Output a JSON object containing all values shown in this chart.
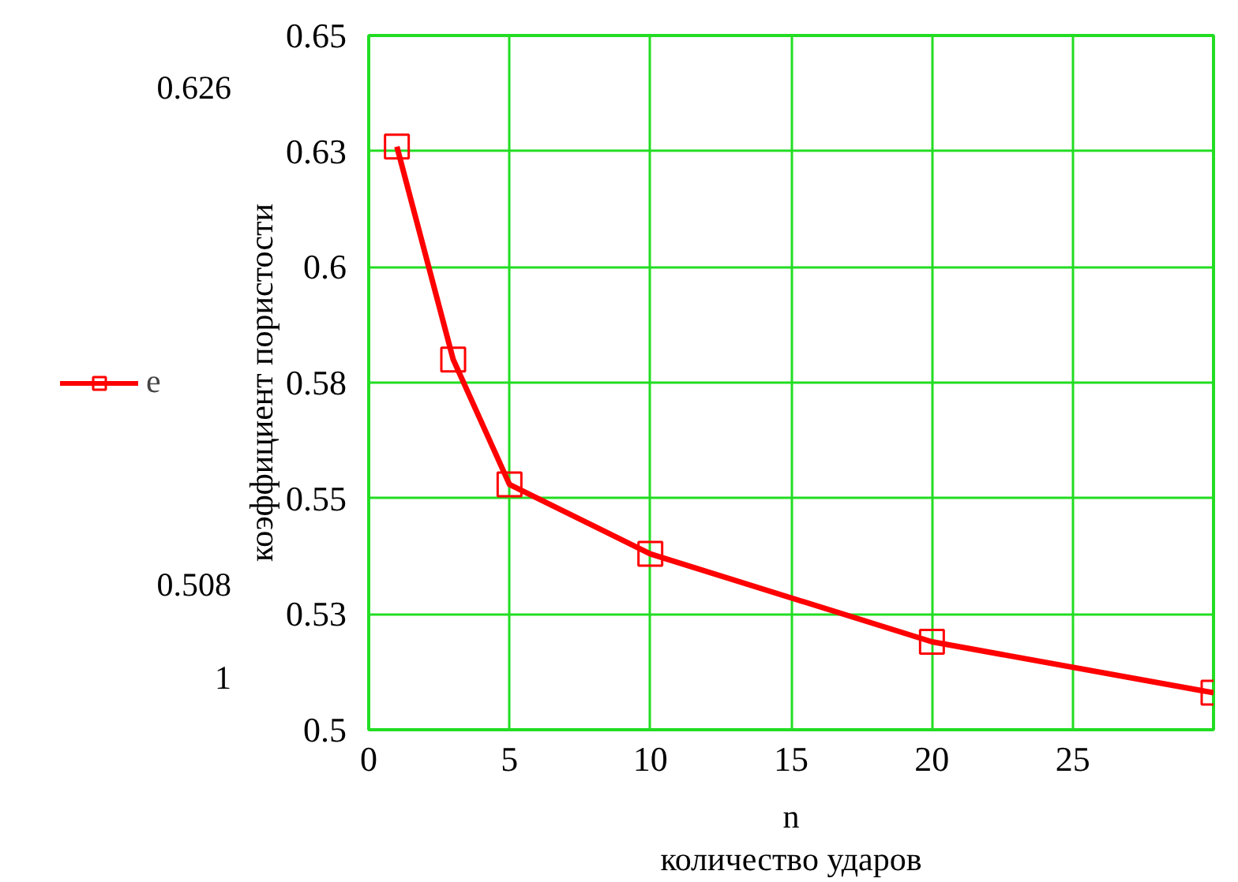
{
  "chart_data": {
    "type": "line",
    "xlabel": "количество ударов",
    "ylabel": "коэффициент пористости",
    "x": [
      1,
      3,
      5,
      10,
      20,
      30
    ],
    "series": [
      {
        "name": "e",
        "color": "#ff0000",
        "values": [
          0.626,
          0.58,
          0.553,
          0.538,
          0.519,
          0.508
        ]
      }
    ],
    "xlim": [
      0,
      30
    ],
    "xticks": [
      0,
      5,
      10,
      15,
      20,
      25
    ],
    "ylim": [
      0.5,
      0.65
    ],
    "yticks": [
      {
        "value": 0.5,
        "label": "0.5"
      },
      {
        "value": 0.525,
        "label": "0.53"
      },
      {
        "value": 0.55,
        "label": "0.55"
      },
      {
        "value": 0.575,
        "label": "0.58"
      },
      {
        "value": 0.6,
        "label": "0.6"
      },
      {
        "value": 0.625,
        "label": "0.63"
      },
      {
        "value": 0.65,
        "label": "0.65"
      }
    ],
    "annotations": [
      "0.626",
      "0.508",
      "1",
      "n"
    ],
    "grid": true,
    "legend": "left",
    "marker": "square",
    "line_style": "solid"
  }
}
